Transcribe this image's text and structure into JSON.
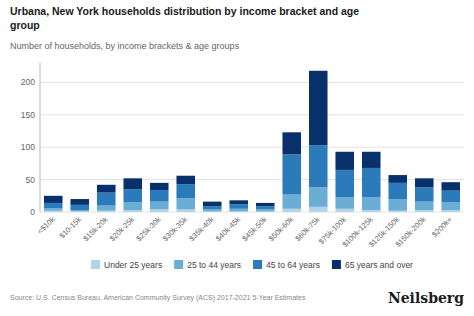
{
  "chart_data": {
    "type": "bar",
    "stacked": true,
    "title": "Urbana, New York households distribution by income bracket and age\ngroup",
    "subtitle": "Number of households, by income brackets & age groups",
    "source": "Source: U.S. Census Bureau, American Community Survey (ACS) 2017-2021 5-Year Estimates",
    "brand": "Neilsberg",
    "categories": [
      "<$10k",
      "$10-15k",
      "$15k-20k",
      "$20k-25k",
      "$25k-30k",
      "$30k-35k",
      "$35k-40k",
      "$40k-45k",
      "$45k-50k",
      "$50k-60k",
      "$60k-75k",
      "$75k-100k",
      "$100k-125k",
      "$125k-150k",
      "$150k-200k",
      "$200k+"
    ],
    "series": [
      {
        "name": "Under 25 years",
        "color": "#b3d4e8",
        "values": [
          2,
          1,
          2,
          3,
          4,
          4,
          1,
          1,
          1,
          5,
          8,
          5,
          3,
          2,
          3,
          3
        ]
      },
      {
        "name": "25 to 44 years",
        "color": "#6aaed6",
        "values": [
          4,
          2,
          8,
          12,
          12,
          17,
          3,
          4,
          3,
          22,
          30,
          18,
          20,
          18,
          13,
          12
        ]
      },
      {
        "name": "45 to 64 years",
        "color": "#2b7bba",
        "values": [
          8,
          8,
          20,
          20,
          18,
          22,
          5,
          7,
          5,
          62,
          65,
          42,
          45,
          25,
          22,
          18
        ]
      },
      {
        "name": "65 years and over",
        "color": "#08306b",
        "values": [
          11,
          9,
          12,
          17,
          11,
          13,
          7,
          6,
          5,
          34,
          115,
          28,
          25,
          12,
          14,
          13
        ]
      }
    ],
    "ylim": [
      0,
      230
    ],
    "yticks": [
      0,
      50,
      100,
      150,
      200
    ],
    "grid": true,
    "legend": "bottom"
  }
}
